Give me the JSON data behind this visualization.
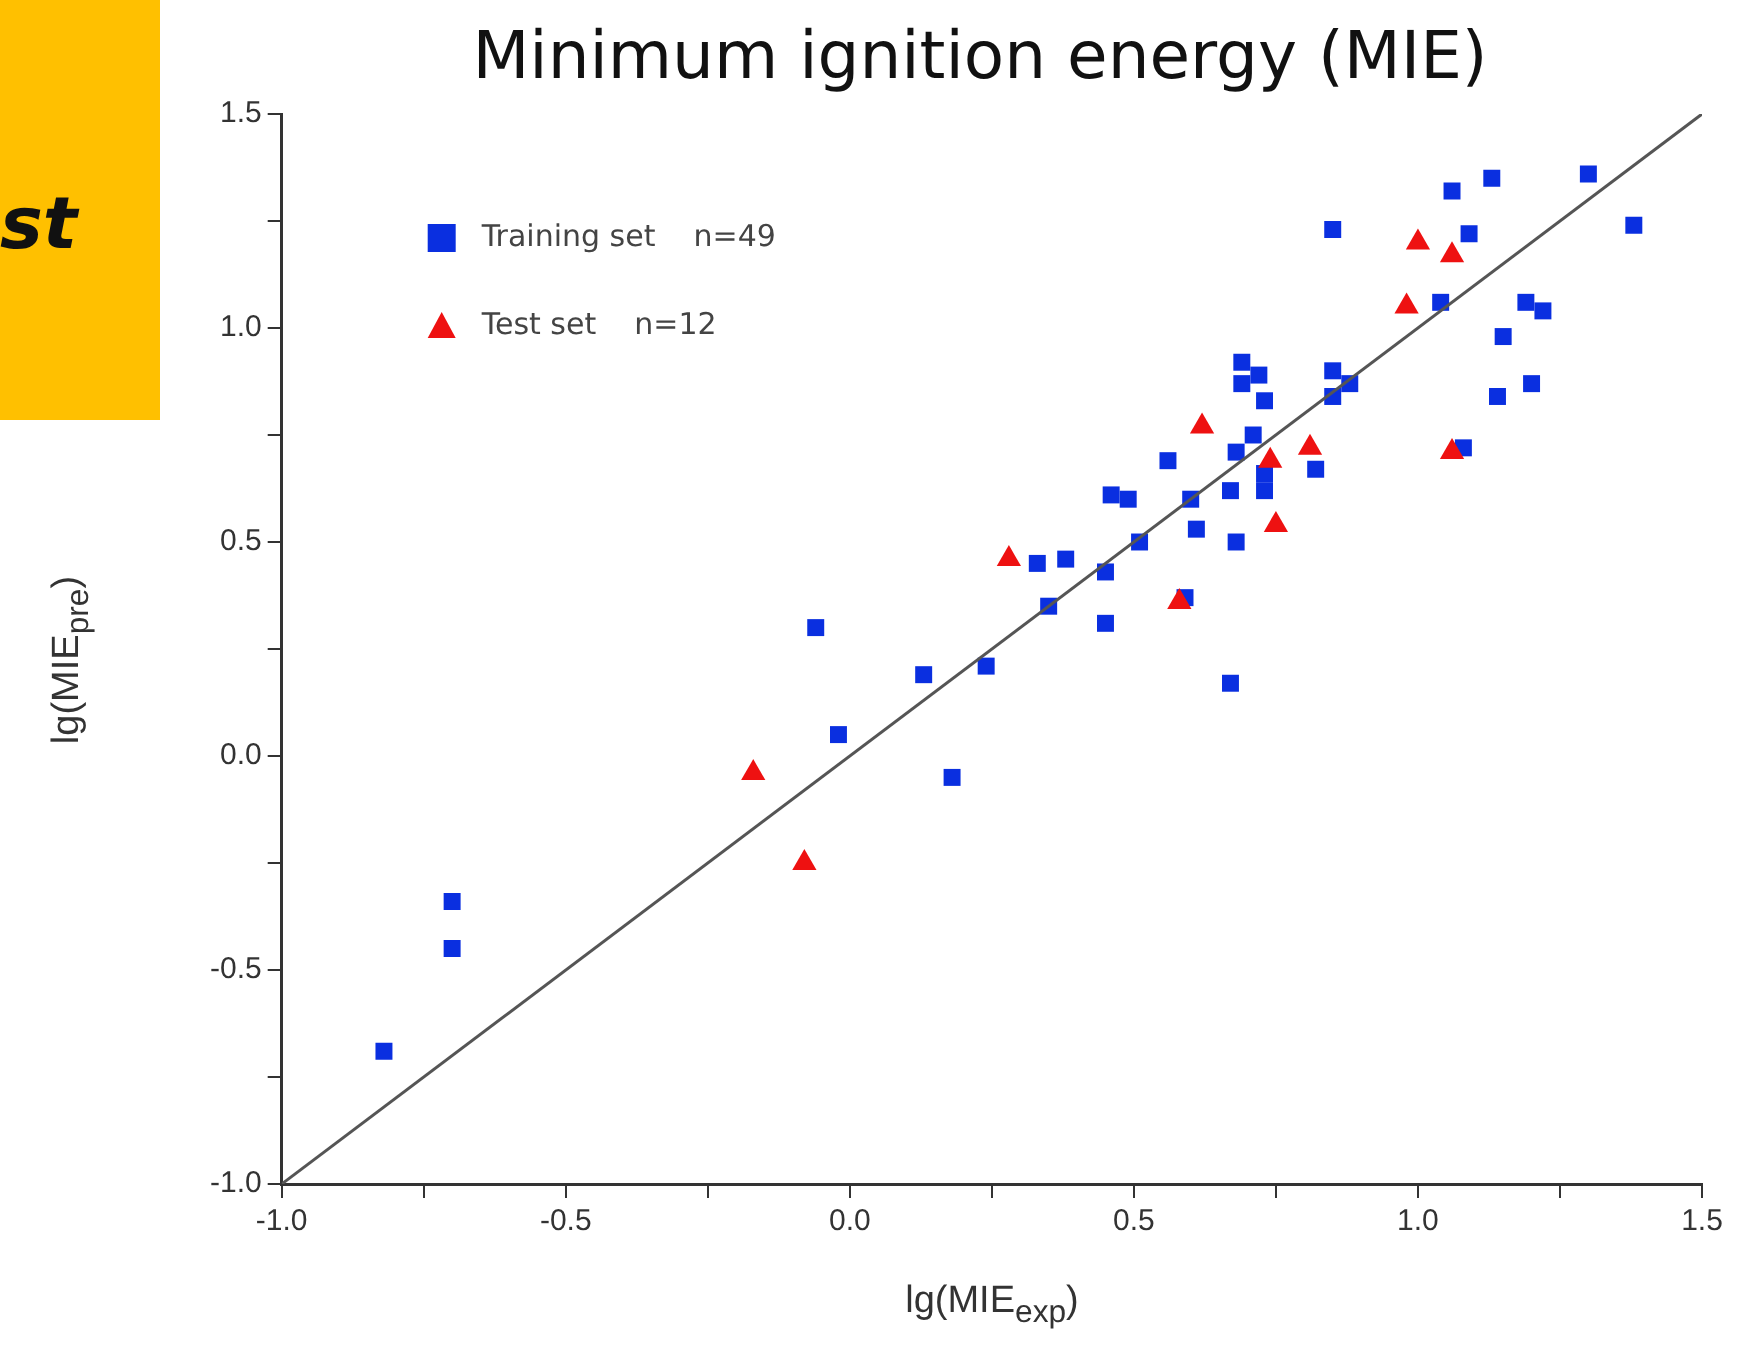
{
  "chart_data": {
    "type": "scatter",
    "title": "Minimum ignition energy (MIE)",
    "xlabel": "lg(MIE$_{exp}$)",
    "ylabel": "lg(MIE$_{pre}$)",
    "annotations": [
      "st"
    ],
    "xlim": [
      -1.0,
      1.5
    ],
    "ylim": [
      -1.0,
      1.5
    ],
    "xticks": [
      {
        "value": -1,
        "label": "-1.0"
      },
      {
        "value": -0.75,
        "label": null
      },
      {
        "value": -0.5,
        "label": "-0.5"
      },
      {
        "value": -0.25,
        "label": null
      },
      {
        "value": 0,
        "label": "0.0"
      },
      {
        "value": 0.25,
        "label": null
      },
      {
        "value": 0.5,
        "label": "0.5"
      },
      {
        "value": 0.75,
        "label": null
      },
      {
        "value": 1,
        "label": "1.0"
      },
      {
        "value": 1.25,
        "label": null
      },
      {
        "value": 1.5,
        "label": "1.5"
      }
    ],
    "yticks": [
      {
        "value": -1,
        "label": "-1.0"
      },
      {
        "value": -0.75,
        "label": null
      },
      {
        "value": -0.5,
        "label": "-0.5"
      },
      {
        "value": -0.25,
        "label": null
      },
      {
        "value": 0,
        "label": "0.0"
      },
      {
        "value": 0.25,
        "label": null
      },
      {
        "value": 0.5,
        "label": "0.5"
      },
      {
        "value": 0.75,
        "label": null
      },
      {
        "value": 1,
        "label": "1.0"
      },
      {
        "value": 1.25,
        "label": null
      },
      {
        "value": 1.5,
        "label": "1.5"
      }
    ],
    "grid": false,
    "legend": "top left",
    "series": [
      {
        "name": "Training set    n=49",
        "color": "#0a2fe0",
        "marker": "square",
        "x": [
          -0.82,
          -0.7,
          -0.7,
          -0.06,
          -0.02,
          0.13,
          0.18,
          0.24,
          0.33,
          0.38,
          0.35,
          0.45,
          0.45,
          0.46,
          0.49,
          0.51,
          0.56,
          0.59,
          0.6,
          0.61,
          0.67,
          0.67,
          0.68,
          0.69,
          0.72,
          0.69,
          0.73,
          0.71,
          0.68,
          0.73,
          0.73,
          0.82,
          0.85,
          0.85,
          0.88,
          0.85,
          1.06,
          1.13,
          1.3,
          1.38,
          1.09,
          1.04,
          1.19,
          1.22,
          1.15,
          1.14,
          1.2,
          1.08
        ],
        "values": [
          -0.69,
          -0.34,
          -0.45,
          0.3,
          0.05,
          0.19,
          -0.05,
          0.21,
          0.45,
          0.46,
          0.35,
          0.43,
          0.31,
          0.61,
          0.6,
          0.5,
          0.69,
          0.37,
          0.6,
          0.53,
          0.17,
          0.62,
          0.5,
          0.92,
          0.89,
          0.87,
          0.83,
          0.75,
          0.71,
          0.66,
          0.62,
          0.67,
          1.23,
          0.9,
          0.87,
          0.84,
          1.32,
          1.35,
          1.36,
          1.24,
          1.22,
          1.06,
          1.06,
          1.04,
          0.98,
          0.84,
          0.87,
          0.72
        ]
      },
      {
        "name": "Test set    n=12",
        "color": "#ee1111",
        "marker": "triangle",
        "x": [
          -0.17,
          -0.08,
          0.28,
          0.58,
          0.62,
          0.74,
          0.81,
          0.75,
          1.0,
          1.06,
          0.98,
          1.06
        ],
        "values": [
          -0.04,
          -0.25,
          0.46,
          0.36,
          0.77,
          0.69,
          0.72,
          0.54,
          1.2,
          1.17,
          1.05,
          0.71
        ]
      },
      {
        "type": "line",
        "color": "#555555",
        "marker": "none",
        "line_style": "solid",
        "x": [
          -1.0,
          1.5
        ],
        "values": [
          -1.0,
          1.5
        ]
      }
    ]
  }
}
